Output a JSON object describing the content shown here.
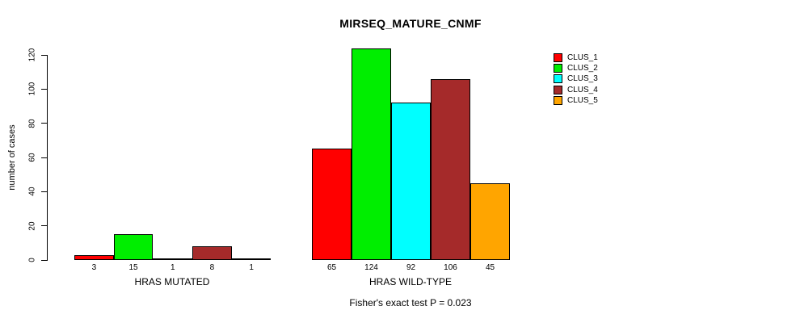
{
  "title": "MIRSEQ_MATURE_CNMF",
  "chart_data": {
    "type": "bar",
    "title": "MIRSEQ_MATURE_CNMF",
    "ylabel": "number of cases",
    "xlabel": "",
    "ylim": [
      0,
      124
    ],
    "yticks": [
      0,
      20,
      40,
      60,
      80,
      100,
      120
    ],
    "grid": false,
    "legend_position": "right",
    "bar_border_color": "#000000",
    "categories": [
      "HRAS MUTATED",
      "HRAS WILD-TYPE"
    ],
    "series": [
      {
        "name": "CLUS_1",
        "color": "#FF0000",
        "values": [
          3,
          65
        ]
      },
      {
        "name": "CLUS_2",
        "color": "#00EE00",
        "values": [
          15,
          124
        ]
      },
      {
        "name": "CLUS_3",
        "color": "#00FFFF",
        "values": [
          1,
          92
        ]
      },
      {
        "name": "CLUS_4",
        "color": "#A52A2A",
        "values": [
          8,
          106
        ]
      },
      {
        "name": "CLUS_5",
        "color": "#FFA500",
        "values": [
          1,
          45
        ]
      }
    ],
    "bar_value_labels": [
      [
        "3",
        "15",
        "1",
        "8",
        "1"
      ],
      [
        "65",
        "124",
        "92",
        "106",
        "45"
      ]
    ],
    "annotation": "Fisher's exact test P = 0.023"
  }
}
